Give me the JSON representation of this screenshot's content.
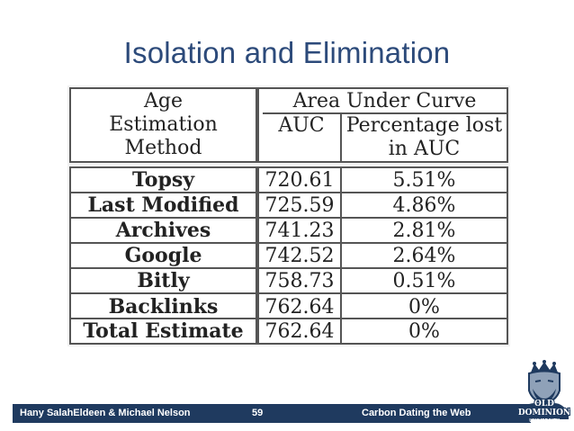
{
  "slide": {
    "title": "Isolation and Elimination"
  },
  "table": {
    "header": {
      "method_lines": [
        "Age",
        "Estimation",
        "Method"
      ],
      "group": "Area Under Curve",
      "auc": "AUC",
      "pct_lines": [
        "Percentage lost",
        "in AUC"
      ]
    },
    "rows": [
      {
        "method": "Topsy",
        "auc": "720.61",
        "pct": "5.51%"
      },
      {
        "method": "Last Modified",
        "auc": "725.59",
        "pct": "4.86%"
      },
      {
        "method": "Archives",
        "auc": "741.23",
        "pct": "2.81%"
      },
      {
        "method": "Google",
        "auc": "742.52",
        "pct": "2.64%"
      },
      {
        "method": "Bitly",
        "auc": "758.73",
        "pct": "0.51%"
      },
      {
        "method": "Backlinks",
        "auc": "762.64",
        "pct": "0%"
      }
    ],
    "total": {
      "method": "Total Estimate",
      "auc": "762.64",
      "pct": "0%"
    }
  },
  "footer": {
    "authors": "Hany SalahEldeen & Michael Nelson",
    "page": "59",
    "talk": "Carbon Dating the Web"
  },
  "logo": {
    "icon": "university-monarch-logo-icon",
    "line1": "OLD",
    "line2": "DOMINION",
    "line3": "UNIVERSITY"
  },
  "colors": {
    "title": "#2c4a7a",
    "footer_bg": "#1f3a5f"
  }
}
